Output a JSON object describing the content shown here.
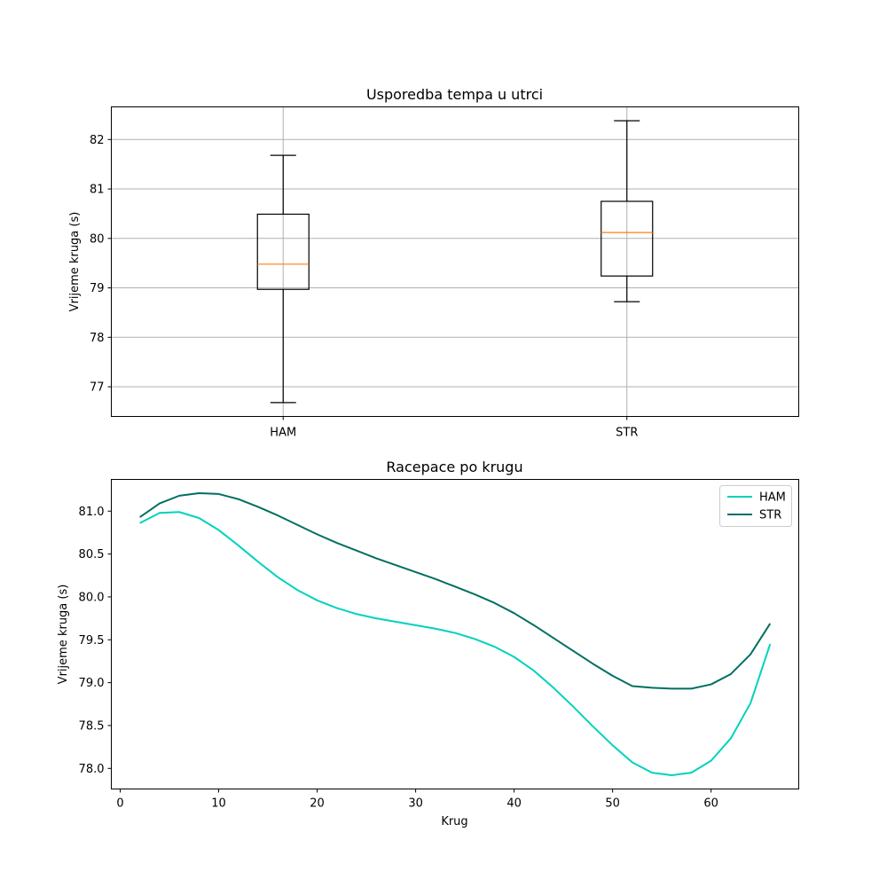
{
  "chart_data": [
    {
      "type": "box",
      "title": "Usporedba tempa u utrci",
      "xlabel": "",
      "ylabel": "Vrijeme kruga (s)",
      "categories": [
        "HAM",
        "STR"
      ],
      "ylim": [
        76.4,
        82.66
      ],
      "yticks": [
        77,
        78,
        79,
        80,
        81,
        82
      ],
      "grid": true,
      "median_color": "#ff7f0e",
      "boxes": [
        {
          "name": "HAM",
          "whisker_low": 76.68,
          "q1": 78.97,
          "median": 79.48,
          "q3": 80.49,
          "whisker_high": 81.68
        },
        {
          "name": "STR",
          "whisker_low": 78.72,
          "q1": 79.24,
          "median": 80.12,
          "q3": 80.75,
          "whisker_high": 82.38
        }
      ]
    },
    {
      "type": "line",
      "title": "Racepace po krugu",
      "xlabel": "Krug",
      "ylabel": "Vrijeme kruga (s)",
      "xlim": [
        -0.9,
        68.9
      ],
      "ylim": [
        77.76,
        81.37
      ],
      "xticks": [
        0,
        10,
        20,
        30,
        40,
        50,
        60
      ],
      "yticks": [
        78.0,
        78.5,
        79.0,
        79.5,
        80.0,
        80.5,
        81.0
      ],
      "ytick_labels": [
        "78.0",
        "78.5",
        "79.0",
        "79.5",
        "80.0",
        "80.5",
        "81.0"
      ],
      "grid": false,
      "legend_position": "top-right",
      "x": [
        2,
        4,
        6,
        8,
        10,
        12,
        14,
        16,
        18,
        20,
        22,
        24,
        26,
        28,
        30,
        32,
        34,
        36,
        38,
        40,
        42,
        44,
        46,
        48,
        50,
        52,
        54,
        56,
        58,
        60,
        62,
        64,
        66
      ],
      "series": [
        {
          "name": "HAM",
          "color": "#00d2be",
          "values": [
            80.86,
            80.98,
            80.99,
            80.92,
            80.78,
            80.6,
            80.41,
            80.23,
            80.08,
            79.96,
            79.87,
            79.8,
            79.75,
            79.71,
            79.67,
            79.63,
            79.58,
            79.51,
            79.42,
            79.3,
            79.14,
            78.94,
            78.72,
            78.49,
            78.27,
            78.07,
            77.95,
            77.92,
            77.95,
            78.09,
            78.35,
            78.76,
            79.45
          ]
        },
        {
          "name": "STR",
          "color": "#006f62",
          "values": [
            80.93,
            81.09,
            81.18,
            81.21,
            81.2,
            81.14,
            81.05,
            80.95,
            80.84,
            80.73,
            80.63,
            80.54,
            80.45,
            80.37,
            80.29,
            80.21,
            80.12,
            80.03,
            79.93,
            79.81,
            79.67,
            79.52,
            79.37,
            79.22,
            79.08,
            78.96,
            78.94,
            78.93,
            78.93,
            78.98,
            79.1,
            79.33,
            79.69
          ]
        }
      ]
    }
  ]
}
